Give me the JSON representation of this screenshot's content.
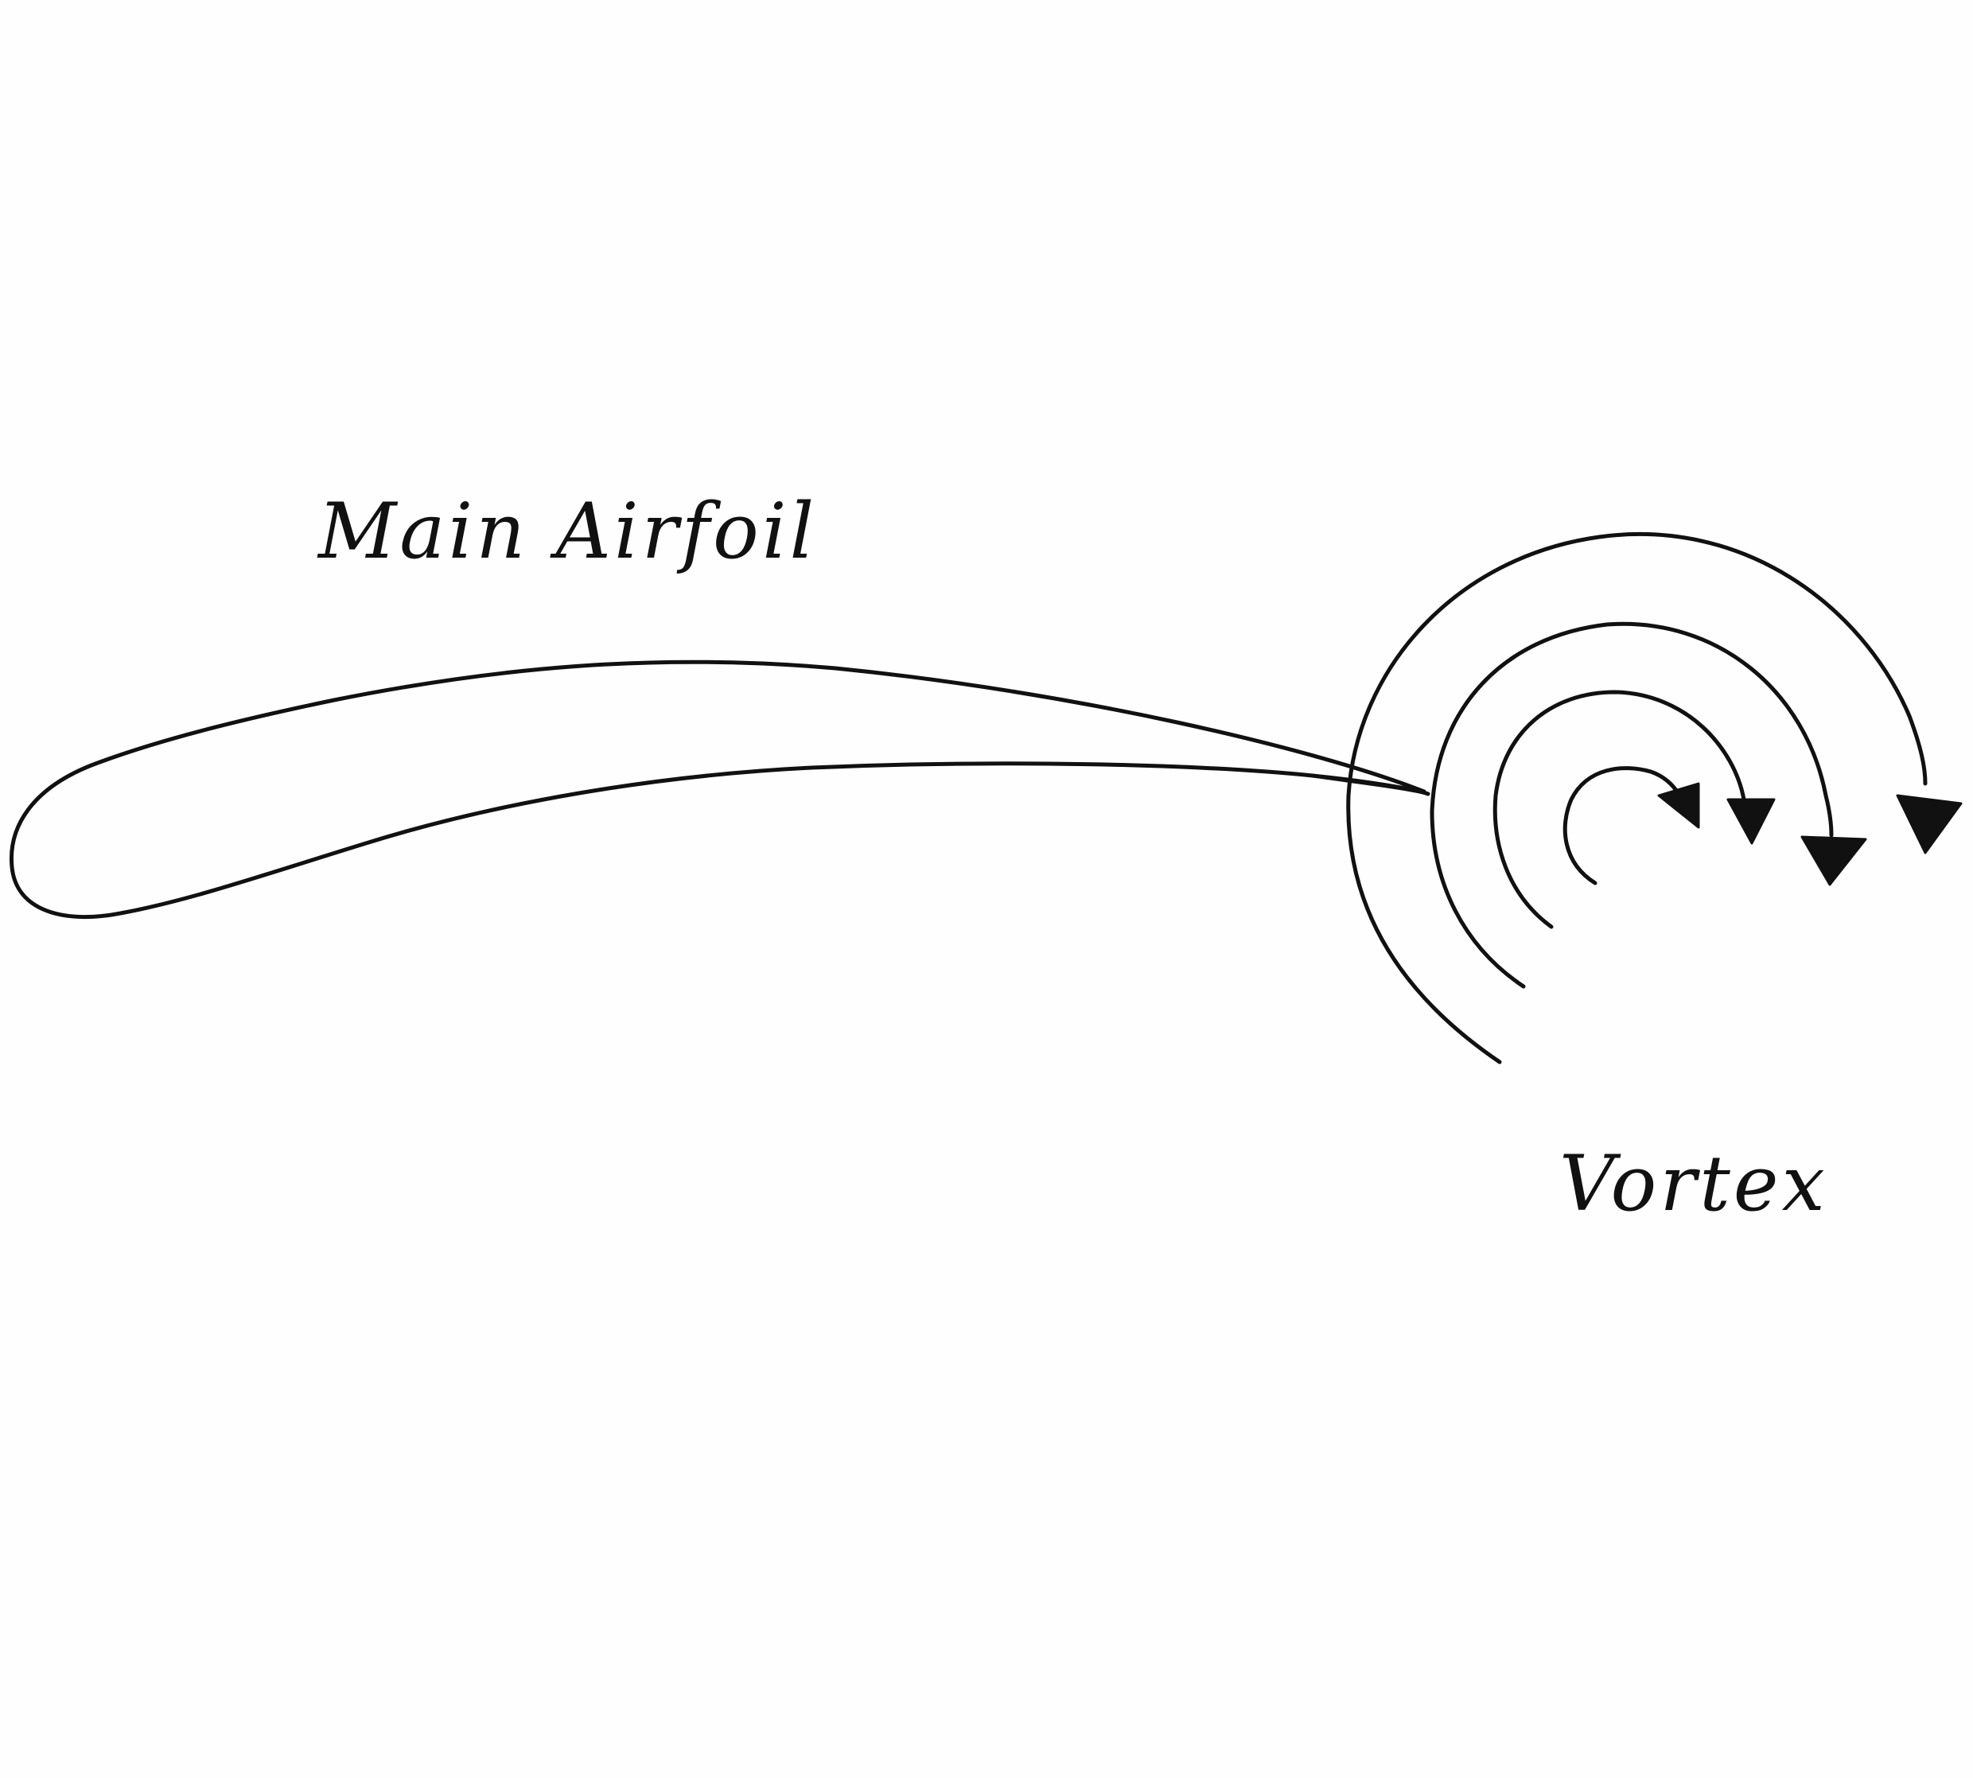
{
  "diagram": {
    "labels": {
      "main_airfoil": "Main Airfoil",
      "vortex": "Vortex"
    },
    "vortex_arcs": 4,
    "colors": {
      "ink": "#111111",
      "paper": "#fefefe"
    }
  }
}
